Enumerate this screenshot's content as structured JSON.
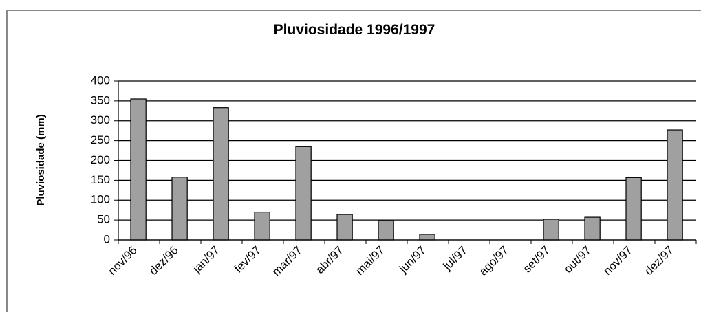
{
  "chart_data": {
    "type": "bar",
    "title": "Pluviosidade 1996/1997",
    "y_label": "Pluviosidade (mm)",
    "categories": [
      "nov/96",
      "dez/96",
      "jan/97",
      "fev/97",
      "mar/97",
      "abr/97",
      "mai/97",
      "jun/97",
      "jul/97",
      "ago/97",
      "set/97",
      "out/97",
      "nov/97",
      "dez/97"
    ],
    "values": [
      355,
      158,
      333,
      70,
      235,
      64,
      48,
      14,
      0,
      0,
      52,
      57,
      157,
      277
    ],
    "color": "#a0a0a0",
    "ylim": [
      0,
      400
    ],
    "yticks": [
      0,
      50,
      100,
      150,
      200,
      250,
      300,
      350,
      400
    ],
    "grid": true
  }
}
